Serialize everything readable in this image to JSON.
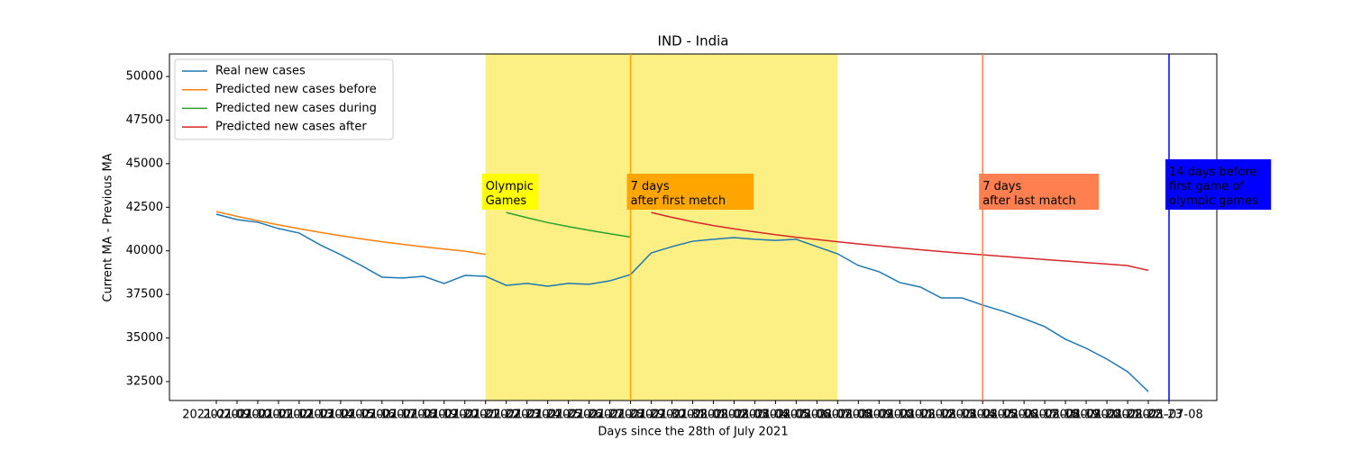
{
  "chart_data": {
    "type": "line",
    "title": "IND - India",
    "x_label": "Days since the 28th of July 2021",
    "y_label": "Current MA - Previous MA",
    "categories": [
      "2021-07-09",
      "2021-07-10",
      "2021-07-11",
      "2021-07-12",
      "2021-07-13",
      "2021-07-14",
      "2021-07-15",
      "2021-07-16",
      "2021-07-17",
      "2021-07-18",
      "2021-07-19",
      "2021-07-20",
      "2021-07-21",
      "2021-07-22",
      "2021-07-23",
      "2021-07-24",
      "2021-07-25",
      "2021-07-26",
      "2021-07-27",
      "2021-07-28",
      "2021-07-29",
      "2021-07-30",
      "2021-07-31",
      "2021-08-01",
      "2021-08-02",
      "2021-08-03",
      "2021-08-04",
      "2021-08-05",
      "2021-08-06",
      "2021-08-07",
      "2021-08-08",
      "2021-08-09",
      "2021-08-10",
      "2021-08-11",
      "2021-08-12",
      "2021-08-13",
      "2021-08-14",
      "2021-08-15",
      "2021-08-16",
      "2021-08-17",
      "2021-08-18",
      "2021-08-19",
      "2021-08-20",
      "2021-08-21",
      "2021-08-22",
      "2021-08-23",
      "2021-07-08"
    ],
    "series": [
      {
        "name": "Real new cases",
        "color": "#1f77b4",
        "values": [
          42100,
          41790,
          41640,
          41280,
          41020,
          40350,
          39780,
          39160,
          38490,
          38440,
          38540,
          38130,
          38590,
          38540,
          38020,
          38130,
          37970,
          38130,
          38080,
          38280,
          38640,
          39880,
          40240,
          40550,
          40660,
          40760,
          40660,
          40600,
          40660,
          40240,
          39830,
          39160,
          38800,
          38180,
          37920,
          37300,
          37300,
          36890,
          36530,
          36110,
          35650,
          34930,
          34410,
          33790,
          33070,
          31930,
          null
        ]
      },
      {
        "name": "Predicted new cases before",
        "color": "#ff7f0e",
        "values": [
          42250,
          41980,
          41730,
          41490,
          41270,
          41060,
          40870,
          40690,
          40520,
          40370,
          40230,
          40100,
          39980,
          39800,
          null,
          null,
          null,
          null,
          null,
          null,
          null,
          null,
          null,
          null,
          null,
          null,
          null,
          null,
          null,
          null,
          null,
          null,
          null,
          null,
          null,
          null,
          null,
          null,
          null,
          null,
          null,
          null,
          null,
          null,
          null,
          null,
          null
        ]
      },
      {
        "name": "Predicted new cases during",
        "color": "#2ca02c",
        "values": [
          null,
          null,
          null,
          null,
          null,
          null,
          null,
          null,
          null,
          null,
          null,
          null,
          null,
          null,
          42200,
          41900,
          41620,
          41390,
          41180,
          40980,
          40790,
          null,
          null,
          null,
          null,
          null,
          null,
          null,
          null,
          null,
          null,
          null,
          null,
          null,
          null,
          null,
          null,
          null,
          null,
          null,
          null,
          null,
          null,
          null,
          null,
          null,
          null
        ]
      },
      {
        "name": "Predicted new cases after",
        "color": "#d62728",
        "values": [
          null,
          null,
          null,
          null,
          null,
          null,
          null,
          null,
          null,
          null,
          null,
          null,
          null,
          null,
          null,
          null,
          null,
          null,
          null,
          null,
          null,
          42200,
          41920,
          41670,
          41450,
          41260,
          41090,
          40930,
          40780,
          40650,
          40520,
          40400,
          40280,
          40170,
          40060,
          39960,
          39860,
          39770,
          39680,
          39590,
          39500,
          39420,
          39330,
          39240,
          39150,
          38880,
          null
        ]
      }
    ],
    "ylim": [
      31416,
      51290
    ],
    "yticks": [
      32500,
      35000,
      37500,
      40000,
      42500,
      45000,
      47500,
      50000
    ],
    "legend": "upper left",
    "region": {
      "from": "2021-07-22",
      "to": "2021-08-08",
      "color": "#fcef84",
      "label": "Olympic\nGames",
      "label_color": "#ffff00",
      "text_color": "#000000"
    },
    "vlines": [
      {
        "x": "2021-07-29",
        "color": "#ffa500",
        "label": "7 days\nafter first metch",
        "text_color": "#000000"
      },
      {
        "x": "2021-08-15",
        "color": "#ff7f50",
        "label": "7 days\nafter last match",
        "text_color": "#000000"
      },
      {
        "x": "2021-07-08",
        "color": "#0000ff",
        "label": "14 days before\nfirst game of\nolympic games",
        "text_color": "#ffffff"
      }
    ]
  }
}
